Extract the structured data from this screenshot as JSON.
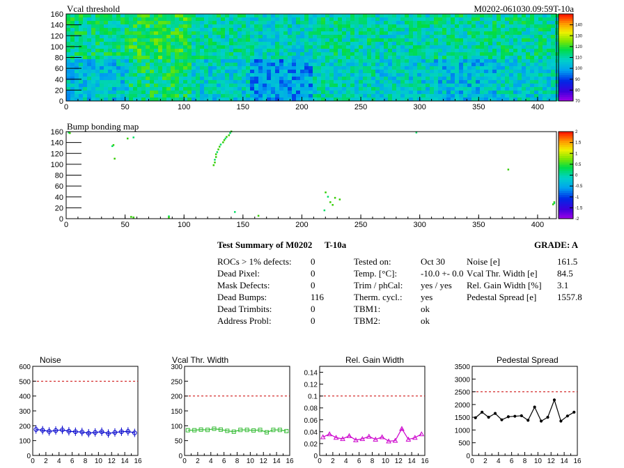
{
  "maps": [
    {
      "title": "Vcal threshold",
      "module_label": "M0202-061030.09:59T-10a",
      "x_ticks": [
        0,
        50,
        100,
        150,
        200,
        250,
        300,
        350,
        400
      ],
      "xlim": [
        0,
        416
      ],
      "y_ticks": [
        0,
        20,
        40,
        60,
        80,
        100,
        120,
        140,
        160
      ],
      "ylim": [
        0,
        160
      ],
      "z_ticks": [
        "70",
        "80",
        "90",
        "100",
        "110",
        "120",
        "130",
        "140"
      ],
      "zlim": [
        70,
        150
      ]
    },
    {
      "title": "Bump bonding map",
      "x_ticks": [
        0,
        50,
        100,
        150,
        200,
        250,
        300,
        350,
        400
      ],
      "xlim": [
        0,
        416
      ],
      "y_ticks": [
        0,
        20,
        40,
        60,
        80,
        100,
        120,
        140,
        160
      ],
      "ylim": [
        0,
        160
      ],
      "z_ticks": [
        "-2",
        "-1.5",
        "-1",
        "-0.5",
        "0",
        "0.5",
        "1",
        "1.5",
        "2"
      ],
      "zlim": [
        -2,
        2
      ]
    }
  ],
  "summary": {
    "heading": "Test Summary of M0202",
    "temp_code": "T-10a",
    "grade_label": "GRADE:  A",
    "col1": [
      {
        "label": "ROCs > 1% defects:",
        "value": "0"
      },
      {
        "label": "Dead Pixel:",
        "value": "0"
      },
      {
        "label": "Mask Defects:",
        "value": "0"
      },
      {
        "label": "Dead Bumps:",
        "value": "116"
      },
      {
        "label": "Dead Trimbits:",
        "value": "0"
      },
      {
        "label": "Address Probl:",
        "value": "0"
      }
    ],
    "col2": [
      {
        "label": "Tested on:",
        "value": "Oct 30"
      },
      {
        "label": "Temp. [°C]:",
        "value": "-10.0 +- 0.0"
      },
      {
        "label": "Trim / phCal:",
        "value": "yes / yes"
      },
      {
        "label": "Therm. cycl.:",
        "value": "yes"
      },
      {
        "label": "TBM1:",
        "value": "ok"
      },
      {
        "label": "TBM2:",
        "value": "ok"
      }
    ],
    "col3": [
      {
        "label": "Noise [e]",
        "value": "161.5"
      },
      {
        "label": "Vcal Thr. Width [e]",
        "value": "84.5"
      },
      {
        "label": "Rel. Gain Width [%]",
        "value": "3.1"
      },
      {
        "label": "Pedestal Spread [e]",
        "value": "1557.8"
      }
    ]
  },
  "chart_data": [
    {
      "type": "line",
      "title": "Noise",
      "x": [
        0,
        1,
        2,
        3,
        4,
        5,
        6,
        7,
        8,
        9,
        10,
        11,
        12,
        13,
        14,
        15
      ],
      "values": [
        175,
        170,
        162,
        168,
        172,
        163,
        160,
        158,
        150,
        155,
        160,
        148,
        155,
        160,
        162,
        152
      ],
      "ylim": [
        0,
        600
      ],
      "xlim": [
        0,
        16
      ],
      "y_ticks": [
        "0",
        "100",
        "200",
        "300",
        "400",
        "500",
        "600"
      ],
      "x_ticks": [
        "0",
        "2",
        "4",
        "6",
        "8",
        "10",
        "12",
        "14",
        "16"
      ],
      "threshold": 500,
      "color": "#0000cc",
      "marker": "circle"
    },
    {
      "type": "line",
      "title": "Vcal Thr. Width",
      "x": [
        0,
        1,
        2,
        3,
        4,
        5,
        6,
        7,
        8,
        9,
        10,
        11,
        12,
        13,
        14,
        15
      ],
      "values": [
        85,
        85,
        87,
        86,
        90,
        87,
        83,
        80,
        86,
        86,
        84,
        86,
        78,
        86,
        86,
        82
      ],
      "ylim": [
        0,
        300
      ],
      "xlim": [
        0,
        16
      ],
      "y_ticks": [
        "0",
        "50",
        "100",
        "150",
        "200",
        "250",
        "300"
      ],
      "x_ticks": [
        "0",
        "2",
        "4",
        "6",
        "8",
        "10",
        "12",
        "14",
        "16"
      ],
      "threshold": 200,
      "color": "#33bb33",
      "marker": "square"
    },
    {
      "type": "line",
      "title": "Rel. Gain Width",
      "x": [
        0,
        1,
        2,
        3,
        4,
        5,
        6,
        7,
        8,
        9,
        10,
        11,
        12,
        13,
        14,
        15
      ],
      "values": [
        0.031,
        0.036,
        0.03,
        0.028,
        0.033,
        0.026,
        0.028,
        0.032,
        0.027,
        0.031,
        0.024,
        0.025,
        0.045,
        0.027,
        0.03,
        0.036
      ],
      "ylim": [
        0,
        0.15
      ],
      "xlim": [
        0,
        16
      ],
      "y_ticks": [
        "0",
        "0.02",
        "0.04",
        "0.06",
        "0.08",
        "0.1",
        "0.12",
        "0.14"
      ],
      "y_tick_values": [
        0,
        0.02,
        0.04,
        0.06,
        0.08,
        0.1,
        0.12,
        0.14
      ],
      "x_ticks": [
        "0",
        "2",
        "4",
        "6",
        "8",
        "10",
        "12",
        "14",
        "16"
      ],
      "threshold": 0.1,
      "color": "#cc00cc",
      "marker": "triangle"
    },
    {
      "type": "line",
      "title": "Pedestal Spread",
      "x": [
        0,
        1,
        2,
        3,
        4,
        5,
        6,
        7,
        8,
        9,
        10,
        11,
        12,
        13,
        14,
        15
      ],
      "values": [
        1480,
        1700,
        1500,
        1650,
        1400,
        1520,
        1540,
        1560,
        1380,
        1900,
        1350,
        1500,
        2180,
        1350,
        1550,
        1700
      ],
      "ylim": [
        0,
        3500
      ],
      "xlim": [
        0,
        16
      ],
      "y_ticks": [
        "0",
        "500",
        "1000",
        "1500",
        "2000",
        "2500",
        "3000",
        "3500"
      ],
      "x_ticks": [
        "0",
        "2",
        "4",
        "6",
        "8",
        "10",
        "12",
        "14",
        "16"
      ],
      "threshold": 2500,
      "color": "#000000",
      "marker": "none"
    }
  ],
  "colors": {
    "threshold_line": "#cc0000"
  }
}
